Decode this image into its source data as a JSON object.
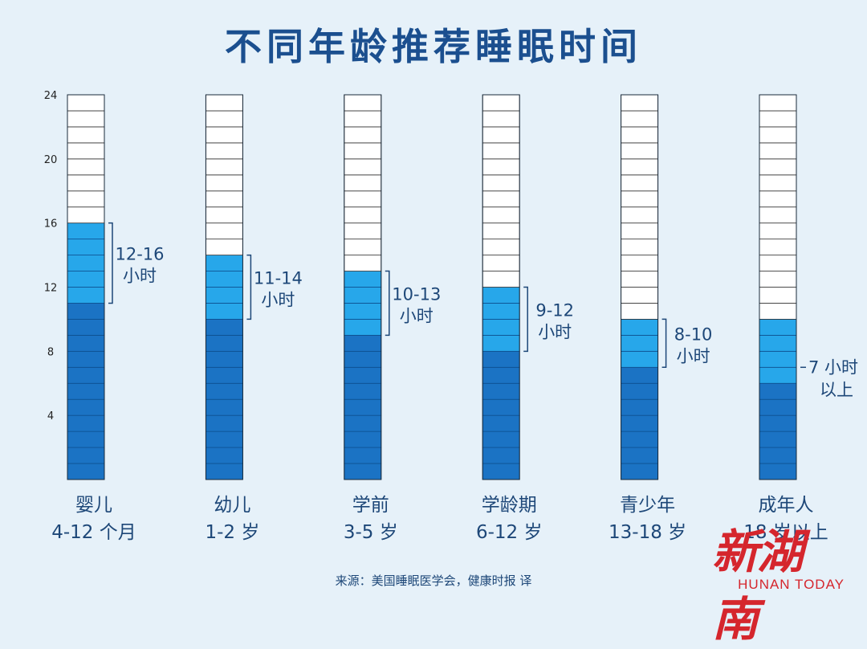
{
  "title": "不同年龄推荐睡眠时间",
  "source": "来源：美国睡眠医学会，健康时报 译",
  "watermark": {
    "logo": "新湖南",
    "text": "HUNAN TODAY"
  },
  "colors": {
    "background": "#e6f1f9",
    "base": "#1b73c4",
    "range": "#27a7ea",
    "empty": "#ffffff",
    "title": "#1b4f8f",
    "label": "#1d4778"
  },
  "chart_data": {
    "type": "bar",
    "title": "不同年龄推荐睡眠时间",
    "ylim": [
      0,
      24
    ],
    "yticks": [
      4,
      8,
      12,
      16,
      20,
      24
    ],
    "y_unit_step": 1,
    "categories": [
      {
        "name": "婴儿",
        "age": "4-12 个月",
        "low": 11,
        "high": 16,
        "label_line1": "12-16",
        "label_line2": "小时"
      },
      {
        "name": "幼儿",
        "age": "1-2 岁",
        "low": 10,
        "high": 14,
        "label_line1": "11-14",
        "label_line2": "小时"
      },
      {
        "name": "学前",
        "age": "3-5 岁",
        "low": 9,
        "high": 13,
        "label_line1": "10-13",
        "label_line2": "小时"
      },
      {
        "name": "学龄期",
        "age": "6-12 岁",
        "low": 8,
        "high": 12,
        "label_line1": "9-12",
        "label_line2": "小时"
      },
      {
        "name": "青少年",
        "age": "13-18 岁",
        "low": 7,
        "high": 10,
        "label_line1": "8-10",
        "label_line2": "小时"
      },
      {
        "name": "成年人",
        "age": "18 岁以上",
        "low": 6,
        "high": 10,
        "label_line1": "7 小时",
        "label_line2": "以上"
      }
    ]
  }
}
